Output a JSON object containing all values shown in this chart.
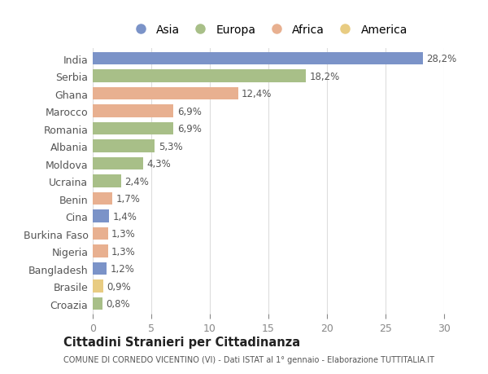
{
  "countries": [
    "India",
    "Serbia",
    "Ghana",
    "Marocco",
    "Romania",
    "Albania",
    "Moldova",
    "Ucraina",
    "Benin",
    "Cina",
    "Burkina Faso",
    "Nigeria",
    "Bangladesh",
    "Brasile",
    "Croazia"
  ],
  "values": [
    28.2,
    18.2,
    12.4,
    6.9,
    6.9,
    5.3,
    4.3,
    2.4,
    1.7,
    1.4,
    1.3,
    1.3,
    1.2,
    0.9,
    0.8
  ],
  "labels": [
    "28,2%",
    "18,2%",
    "12,4%",
    "6,9%",
    "6,9%",
    "5,3%",
    "4,3%",
    "2,4%",
    "1,7%",
    "1,4%",
    "1,3%",
    "1,3%",
    "1,2%",
    "0,9%",
    "0,8%"
  ],
  "continents": [
    "Asia",
    "Europa",
    "Africa",
    "Africa",
    "Europa",
    "Europa",
    "Europa",
    "Europa",
    "Africa",
    "Asia",
    "Africa",
    "Africa",
    "Asia",
    "America",
    "Europa"
  ],
  "colors": {
    "Asia": "#7b93c8",
    "Europa": "#a8bf88",
    "Africa": "#e8b090",
    "America": "#e8cc82"
  },
  "legend_labels": [
    "Asia",
    "Europa",
    "Africa",
    "America"
  ],
  "legend_colors": [
    "#7b93c8",
    "#a8bf88",
    "#e8b090",
    "#e8cc82"
  ],
  "title": "Cittadini Stranieri per Cittadinanza",
  "subtitle": "COMUNE DI CORNEDO VICENTINO (VI) - Dati ISTAT al 1° gennaio - Elaborazione TUTTITALIA.IT",
  "xlim": [
    0,
    30
  ],
  "xticks": [
    0,
    5,
    10,
    15,
    20,
    25,
    30
  ],
  "background_color": "#ffffff",
  "bar_height": 0.72,
  "grid_color": "#dddddd",
  "label_fontsize": 8.5,
  "ytick_fontsize": 9,
  "xtick_fontsize": 9
}
